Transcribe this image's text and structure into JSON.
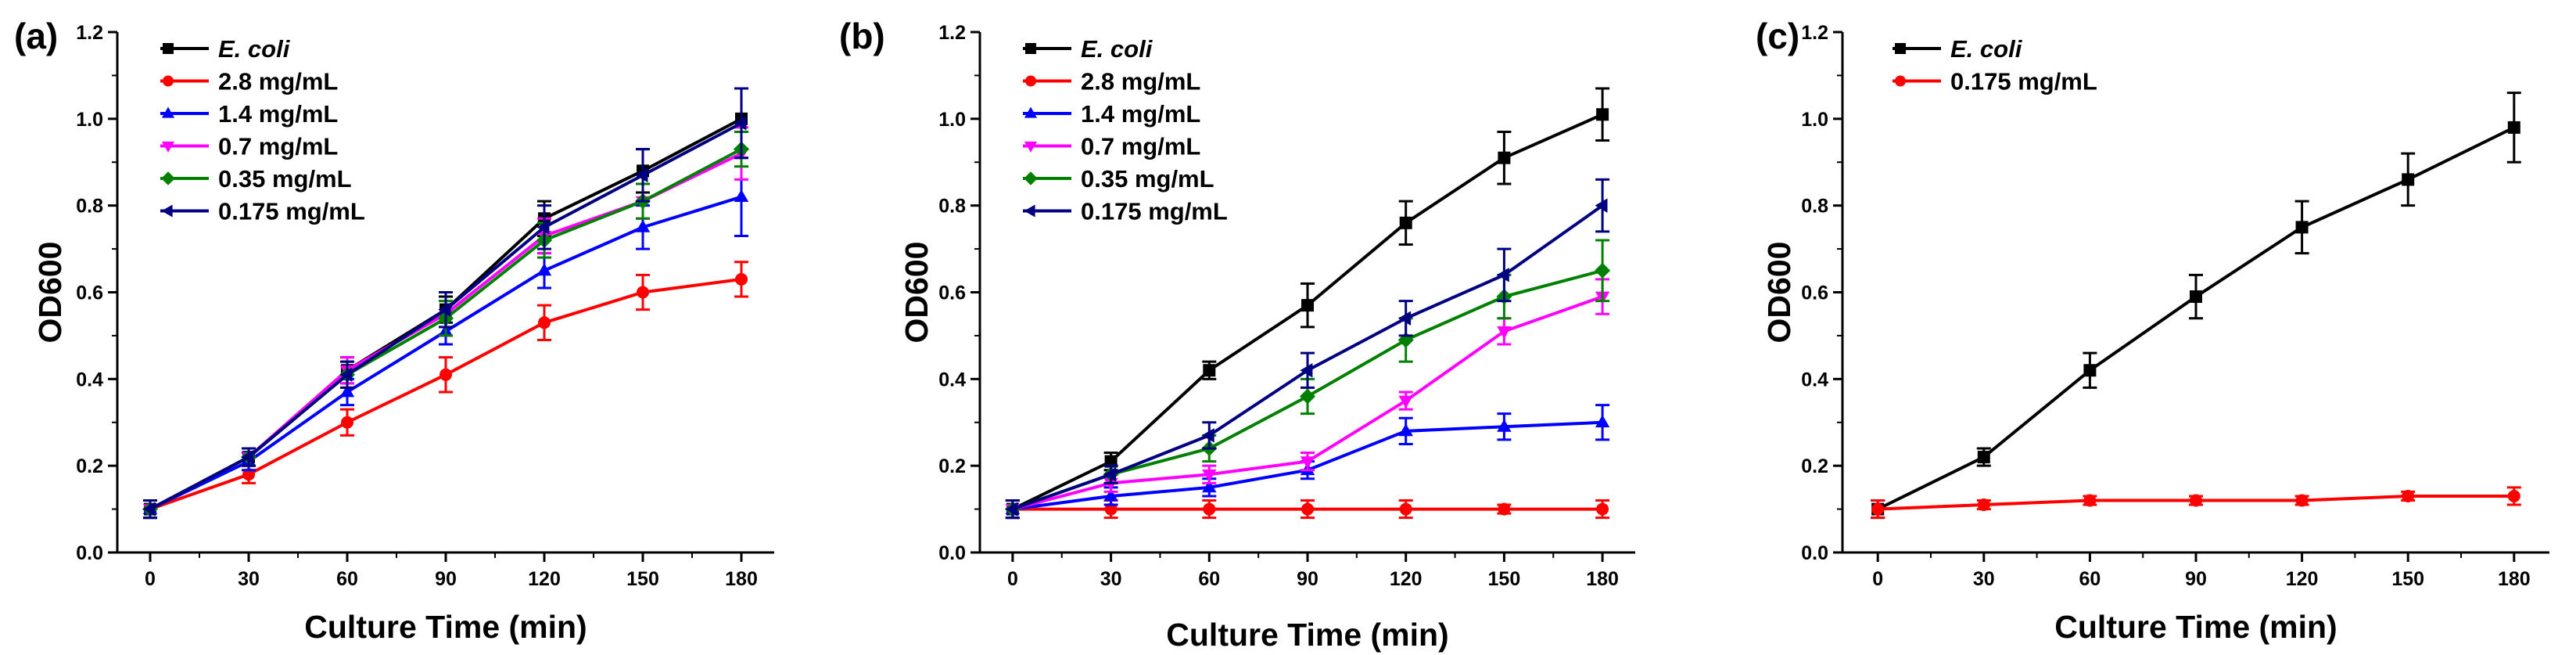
{
  "chart_data": [
    {
      "type": "line",
      "panel_label": "(a)",
      "xlabel": "Culture Time (min)",
      "ylabel": "OD600",
      "x": [
        0,
        30,
        60,
        90,
        120,
        150,
        180
      ],
      "x_ticks": [
        "0",
        "30",
        "60",
        "90",
        "120",
        "150",
        "180"
      ],
      "xlim": [
        -10,
        190
      ],
      "ylim": [
        0,
        1.2
      ],
      "y_ticks": [
        "0.0",
        "0.2",
        "0.4",
        "0.6",
        "0.8",
        "1.0",
        "1.2"
      ],
      "legend_position": "top-left",
      "series": [
        {
          "name": "E. coli",
          "italic": true,
          "color": "#000000",
          "marker": "square",
          "values": [
            0.1,
            0.22,
            0.42,
            0.56,
            0.77,
            0.88,
            1.0
          ],
          "errors": [
            0.02,
            0.02,
            0.03,
            0.03,
            0.04,
            0.05,
            0.07
          ]
        },
        {
          "name": "2.8 mg/mL",
          "italic": false,
          "color": "#ff0000",
          "marker": "circle",
          "values": [
            0.1,
            0.18,
            0.3,
            0.41,
            0.53,
            0.6,
            0.63
          ],
          "errors": [
            0.02,
            0.02,
            0.03,
            0.04,
            0.04,
            0.04,
            0.04
          ]
        },
        {
          "name": "1.4 mg/mL",
          "italic": false,
          "color": "#0000ff",
          "marker": "triangle-up",
          "values": [
            0.1,
            0.21,
            0.37,
            0.51,
            0.65,
            0.75,
            0.82
          ],
          "errors": [
            0.02,
            0.02,
            0.03,
            0.03,
            0.04,
            0.05,
            0.09
          ]
        },
        {
          "name": "0.7 mg/mL",
          "italic": false,
          "color": "#ff00ff",
          "marker": "triangle-down",
          "values": [
            0.1,
            0.22,
            0.42,
            0.55,
            0.73,
            0.81,
            0.92
          ],
          "errors": [
            0.02,
            0.02,
            0.03,
            0.05,
            0.04,
            0.04,
            0.06
          ]
        },
        {
          "name": "0.35 mg/mL",
          "italic": false,
          "color": "#008000",
          "marker": "diamond",
          "values": [
            0.1,
            0.22,
            0.41,
            0.54,
            0.72,
            0.81,
            0.93
          ],
          "errors": [
            0.02,
            0.02,
            0.03,
            0.04,
            0.04,
            0.04,
            0.04
          ]
        },
        {
          "name": "0.175 mg/mL",
          "italic": false,
          "color": "#000080",
          "marker": "triangle-left",
          "values": [
            0.1,
            0.22,
            0.41,
            0.56,
            0.75,
            0.87,
            0.99
          ],
          "errors": [
            0.02,
            0.02,
            0.03,
            0.04,
            0.05,
            0.06,
            0.08
          ]
        }
      ]
    },
    {
      "type": "line",
      "panel_label": "(b)",
      "xlabel": "Culture Time (min)",
      "ylabel": "OD600",
      "x": [
        0,
        30,
        60,
        90,
        120,
        150,
        180
      ],
      "x_ticks": [
        "0",
        "30",
        "60",
        "90",
        "120",
        "150",
        "180"
      ],
      "xlim": [
        -10,
        190
      ],
      "ylim": [
        0,
        1.2
      ],
      "y_ticks": [
        "0.0",
        "0.2",
        "0.4",
        "0.6",
        "0.8",
        "1.0",
        "1.2"
      ],
      "legend_position": "top-left",
      "series": [
        {
          "name": "E. coli",
          "italic": true,
          "color": "#000000",
          "marker": "square",
          "values": [
            0.1,
            0.21,
            0.42,
            0.57,
            0.76,
            0.91,
            1.01
          ],
          "errors": [
            0.02,
            0.02,
            0.02,
            0.05,
            0.05,
            0.06,
            0.06
          ]
        },
        {
          "name": "2.8 mg/mL",
          "italic": false,
          "color": "#ff0000",
          "marker": "circle",
          "values": [
            0.1,
            0.1,
            0.1,
            0.1,
            0.1,
            0.1,
            0.1
          ],
          "errors": [
            0.02,
            0.02,
            0.02,
            0.02,
            0.02,
            0.01,
            0.02
          ]
        },
        {
          "name": "1.4 mg/mL",
          "italic": false,
          "color": "#0000ff",
          "marker": "triangle-up",
          "values": [
            0.1,
            0.13,
            0.15,
            0.19,
            0.28,
            0.29,
            0.3
          ],
          "errors": [
            0.02,
            0.02,
            0.02,
            0.02,
            0.03,
            0.03,
            0.04
          ]
        },
        {
          "name": "0.7 mg/mL",
          "italic": false,
          "color": "#ff00ff",
          "marker": "triangle-down",
          "values": [
            0.1,
            0.16,
            0.18,
            0.21,
            0.35,
            0.51,
            0.59
          ],
          "errors": [
            0.02,
            0.02,
            0.02,
            0.02,
            0.02,
            0.03,
            0.04
          ]
        },
        {
          "name": "0.35 mg/mL",
          "italic": false,
          "color": "#008000",
          "marker": "diamond",
          "values": [
            0.1,
            0.18,
            0.24,
            0.36,
            0.49,
            0.59,
            0.65
          ],
          "errors": [
            0.02,
            0.02,
            0.03,
            0.04,
            0.05,
            0.05,
            0.07
          ]
        },
        {
          "name": "0.175 mg/mL",
          "italic": false,
          "color": "#000080",
          "marker": "triangle-left",
          "values": [
            0.1,
            0.18,
            0.27,
            0.42,
            0.54,
            0.64,
            0.8
          ],
          "errors": [
            0.02,
            0.02,
            0.03,
            0.04,
            0.04,
            0.06,
            0.06
          ]
        }
      ]
    },
    {
      "type": "line",
      "panel_label": "(c)",
      "xlabel": "Culture Time (min)",
      "ylabel": "OD600",
      "x": [
        0,
        30,
        60,
        90,
        120,
        150,
        180
      ],
      "x_ticks": [
        "0",
        "30",
        "60",
        "90",
        "120",
        "150",
        "180"
      ],
      "xlim": [
        -10,
        190
      ],
      "ylim": [
        0,
        1.2
      ],
      "y_ticks": [
        "0.0",
        "0.2",
        "0.4",
        "0.6",
        "0.8",
        "1.0",
        "1.2"
      ],
      "legend_position": "top-left",
      "series": [
        {
          "name": "E. coli",
          "italic": true,
          "color": "#000000",
          "marker": "square",
          "values": [
            0.1,
            0.22,
            0.42,
            0.59,
            0.75,
            0.86,
            0.98
          ],
          "errors": [
            0.02,
            0.02,
            0.04,
            0.05,
            0.06,
            0.06,
            0.08
          ]
        },
        {
          "name": "0.175 mg/mL",
          "italic": false,
          "color": "#ff0000",
          "marker": "circle",
          "values": [
            0.1,
            0.11,
            0.12,
            0.12,
            0.12,
            0.13,
            0.13
          ],
          "errors": [
            0.02,
            0.01,
            0.01,
            0.01,
            0.01,
            0.01,
            0.02
          ]
        }
      ]
    }
  ]
}
